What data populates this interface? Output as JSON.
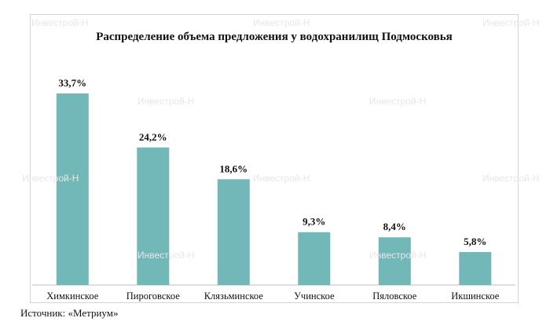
{
  "chart_data": {
    "type": "bar",
    "title": "Распределение объема предложения у водохранилищ Подмосковья",
    "categories": [
      "Химкинское",
      "Пироговское",
      "Клязьминское",
      "Учинское",
      "Пяловское",
      "Икшинское"
    ],
    "values": [
      33.7,
      24.2,
      18.6,
      9.3,
      8.4,
      5.8
    ],
    "value_labels": [
      "33,7%",
      "24,2%",
      "18,6%",
      "9,3%",
      "8,4%",
      "5,8%"
    ],
    "unit": "%",
    "ylim": [
      0,
      36
    ],
    "grid": false,
    "legend": "none",
    "bar_color": "#72b8b9"
  },
  "source": "Источник: «Метриум»",
  "watermark": "Инвестрой-Н"
}
